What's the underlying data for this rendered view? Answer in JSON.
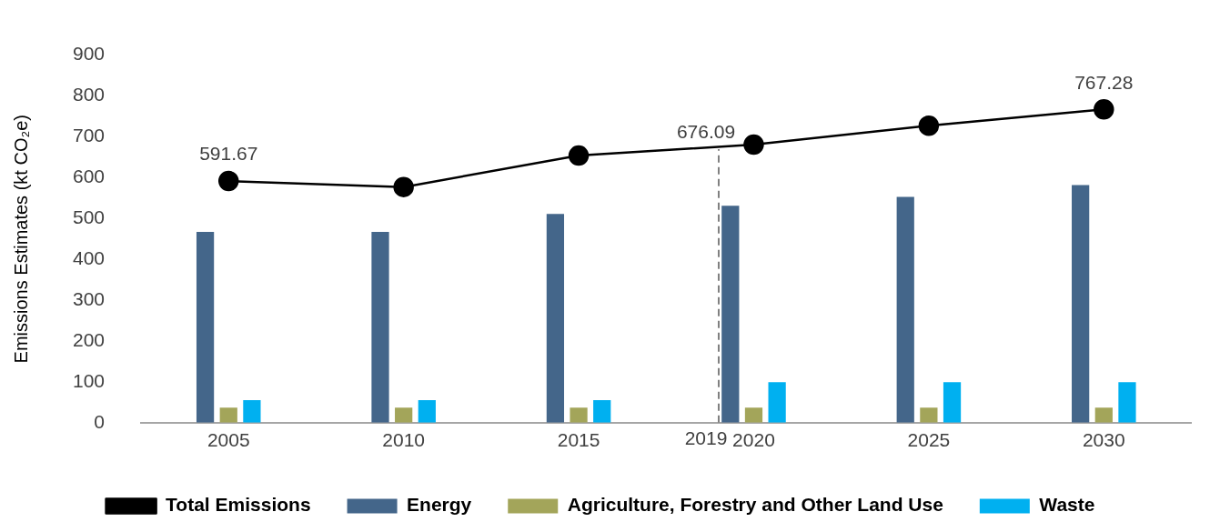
{
  "chart_data": {
    "type": "bar",
    "ylabel": "Emissions Estimates (kt CO₂e)",
    "x": [
      2005,
      2010,
      2015,
      2020,
      2025,
      2030
    ],
    "xlim": [
      2002.5,
      2032.5
    ],
    "xticks": [
      2005,
      2010,
      2015,
      2020,
      2025,
      2030
    ],
    "ylim": [
      0,
      900
    ],
    "yticks": [
      0,
      100,
      200,
      300,
      400,
      500,
      600,
      700,
      800,
      900
    ],
    "grid": false,
    "legend": "bottom",
    "series": [
      {
        "name": "Energy",
        "color": "#44668a",
        "values": [
          467,
          467,
          511,
          531,
          553,
          582
        ]
      },
      {
        "name": "Agriculture, Forestry and Other Land Use",
        "color": "#a3a55a",
        "values": [
          37,
          37,
          37,
          37,
          37,
          37
        ]
      },
      {
        "name": "Waste",
        "color": "#00b0f0",
        "values": [
          55,
          55,
          55,
          99,
          99,
          99
        ]
      },
      {
        "name": "Total Emissions",
        "type": "line",
        "color": "#000000",
        "marker": "circle",
        "line_style": "solid",
        "values": [
          591.67,
          577,
          654,
          681,
          727,
          767.28
        ],
        "value_labels": [
          "591.67",
          null,
          null,
          null,
          null,
          "767.28"
        ]
      }
    ],
    "ref_lines": [
      {
        "axis": "x",
        "value": 2019,
        "label": "2019",
        "color": "#808080",
        "line_style": "dashed"
      }
    ],
    "annotations": [
      {
        "text": "676.09",
        "x": 2019,
        "y": 676.09
      }
    ]
  }
}
